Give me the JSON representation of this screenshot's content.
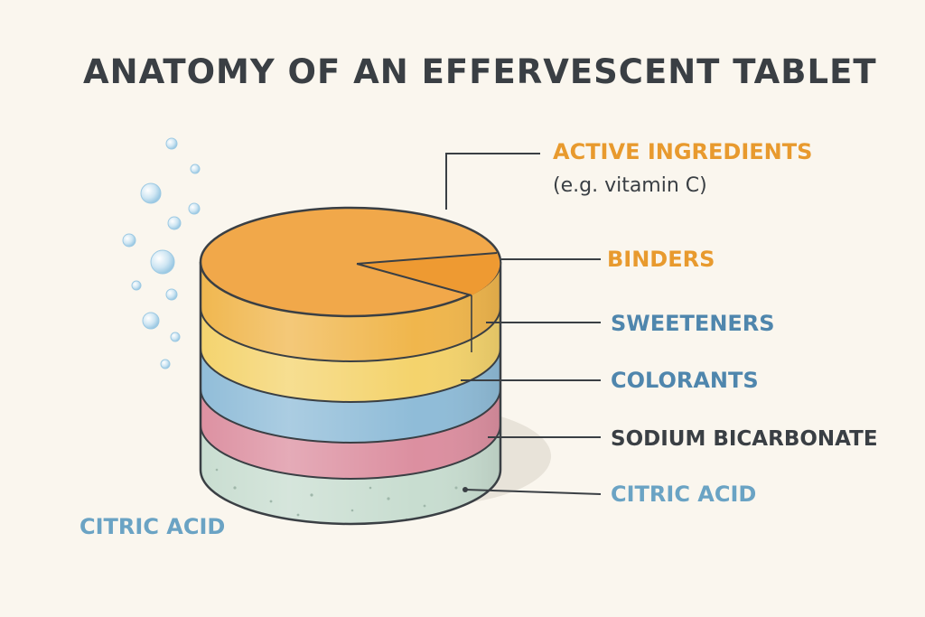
{
  "title": "ANATOMY OF AN EFFERVESCENT TABLET",
  "labels": [
    {
      "key": "active",
      "text": "ACTIVE INGREDIENTS",
      "subtext": "(e.g. vitamin C)",
      "color": "#e89a2e"
    },
    {
      "key": "binders",
      "text": "BINDERS",
      "color": "#e89a2e"
    },
    {
      "key": "sweeteners",
      "text": "SWEETENERS",
      "color": "#4f86ad"
    },
    {
      "key": "colorants",
      "text": "COLORANTS",
      "color": "#4f86ad"
    },
    {
      "key": "sodium",
      "text": "SODIUM BICARBONATE",
      "color": "#3a3f44"
    },
    {
      "key": "citric-right",
      "text": "CITRIC ACID",
      "color": "#6aa3c4"
    }
  ],
  "bottom_label": {
    "text": "CITRIC ACID",
    "color": "#6aa3c4"
  },
  "colors": {
    "background": "#faf6ee",
    "title": "#3a3f44",
    "top_face": "#f1a84a",
    "orange_band": "#f0b64c",
    "yellow_band": "#f4d36c",
    "blue_band": "#8fbcd8",
    "pink_band": "#dc8fa0",
    "green_band": "#c8ddd0",
    "outline": "#3a3f44",
    "bubble": "#bcdcef"
  }
}
